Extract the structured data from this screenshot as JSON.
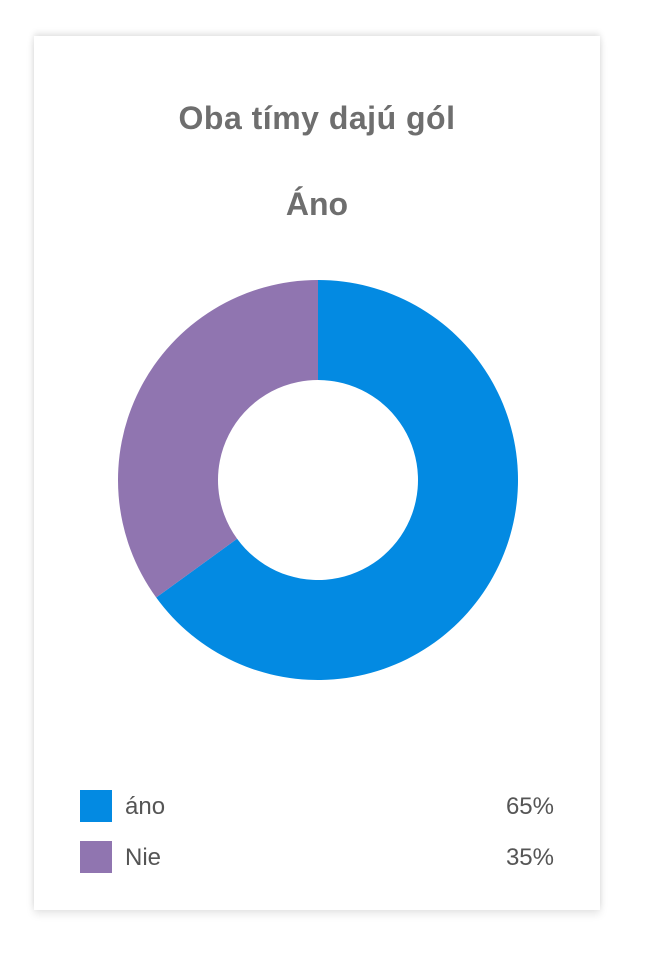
{
  "chart_data": {
    "type": "pie",
    "title": "Oba tímy dajú gól",
    "subtitle": "Áno",
    "categories": [
      "áno",
      "Nie"
    ],
    "values": [
      65,
      35
    ],
    "value_labels": [
      "65%",
      "35%"
    ],
    "colors": [
      "#038ae2",
      "#9075b0"
    ],
    "donut": true,
    "legend_position": "bottom"
  }
}
